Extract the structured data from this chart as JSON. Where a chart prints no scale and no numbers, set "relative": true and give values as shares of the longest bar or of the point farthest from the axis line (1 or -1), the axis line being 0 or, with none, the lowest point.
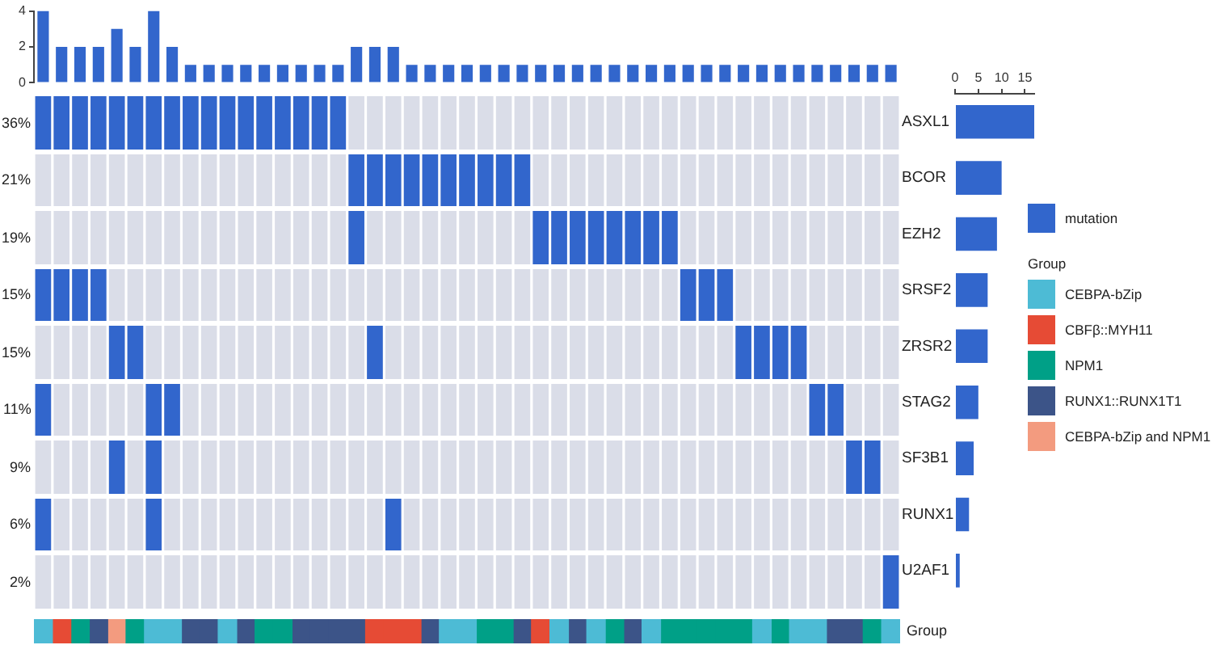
{
  "chart_data": [
    {
      "type": "bar",
      "categories": [
        null,
        null,
        null,
        null,
        null,
        null,
        null,
        null,
        null,
        null,
        null,
        null,
        null,
        null,
        null,
        null,
        null,
        null,
        null,
        null,
        null,
        null,
        null,
        null,
        null,
        null,
        null,
        null,
        null,
        null,
        null,
        null,
        null,
        null,
        null,
        null,
        null,
        null,
        null,
        null,
        null,
        null,
        null,
        null,
        null,
        null,
        null
      ],
      "series": [
        {
          "name": "mutation",
          "color": "#3266cc",
          "values": [
            4,
            2,
            2,
            2,
            3,
            2,
            4,
            2,
            1,
            1,
            1,
            1,
            1,
            1,
            1,
            1,
            1,
            2,
            2,
            2,
            1,
            1,
            1,
            1,
            1,
            1,
            1,
            1,
            1,
            1,
            1,
            1,
            1,
            1,
            1,
            1,
            1,
            1,
            1,
            1,
            1,
            1,
            1,
            1,
            1,
            1,
            1
          ]
        }
      ],
      "legend": "right",
      "ylim": [
        0,
        4
      ],
      "yticks": [
        0,
        2,
        4
      ]
    },
    {
      "type": "bar",
      "relative": true,
      "ylabel": "36%",
      "color": "#3266cc",
      "categories": [
        null,
        null,
        null,
        null,
        null,
        null,
        null,
        null,
        null,
        null,
        null,
        null,
        null,
        null,
        null,
        null,
        null,
        null,
        null,
        null,
        null,
        null,
        null,
        null,
        null,
        null,
        null,
        null,
        null,
        null,
        null,
        null,
        null,
        null,
        null,
        null,
        null,
        null,
        null,
        null,
        null,
        null,
        null,
        null,
        null,
        null,
        null
      ],
      "values": [
        1,
        1,
        1,
        1,
        1,
        1,
        1,
        1,
        1,
        1,
        1,
        1,
        1,
        1,
        1,
        1,
        1,
        null,
        null,
        null,
        null,
        null,
        null,
        null,
        null,
        null,
        null,
        null,
        null,
        null,
        null,
        null,
        null,
        null,
        null,
        null,
        null,
        null,
        null,
        null,
        null,
        null,
        null,
        null,
        null,
        null,
        null
      ]
    },
    {
      "type": "bar",
      "relative": true,
      "ylabel": "21%",
      "color": "#3266cc",
      "categories": [
        null,
        null,
        null,
        null,
        null,
        null,
        null,
        null,
        null,
        null,
        null,
        null,
        null,
        null,
        null,
        null,
        null,
        null,
        null,
        null,
        null,
        null,
        null,
        null,
        null,
        null,
        null,
        null,
        null,
        null,
        null,
        null,
        null,
        null,
        null,
        null,
        null,
        null,
        null,
        null,
        null,
        null,
        null,
        null,
        null,
        null,
        null
      ],
      "values": [
        null,
        null,
        null,
        null,
        null,
        null,
        null,
        null,
        null,
        null,
        null,
        null,
        null,
        null,
        null,
        null,
        null,
        1,
        1,
        1,
        1,
        1,
        1,
        1,
        1,
        1,
        1,
        null,
        null,
        null,
        null,
        null,
        null,
        null,
        null,
        null,
        null,
        null,
        null,
        null,
        null,
        null,
        null,
        null,
        null,
        null,
        null
      ]
    },
    {
      "type": "bar",
      "relative": true,
      "ylabel": "19%",
      "color": "#3266cc",
      "categories": [
        null,
        null,
        null,
        null,
        null,
        null,
        null,
        null,
        null,
        null,
        null,
        null,
        null,
        null,
        null,
        null,
        null,
        null,
        null,
        null,
        null,
        null,
        null,
        null,
        null,
        null,
        null,
        null,
        null,
        null,
        null,
        null,
        null,
        null,
        null,
        null,
        null,
        null,
        null,
        null,
        null,
        null,
        null,
        null,
        null,
        null,
        null
      ],
      "values": [
        null,
        null,
        null,
        null,
        null,
        null,
        null,
        null,
        null,
        null,
        null,
        null,
        null,
        null,
        null,
        null,
        null,
        1,
        null,
        null,
        null,
        null,
        null,
        null,
        null,
        null,
        null,
        1,
        1,
        1,
        1,
        1,
        1,
        1,
        1,
        null,
        null,
        null,
        null,
        null,
        null,
        null,
        null,
        null,
        null,
        null,
        null
      ]
    },
    {
      "type": "bar",
      "relative": true,
      "ylabel": "15%",
      "color": "#3266cc",
      "categories": [
        null,
        null,
        null,
        null,
        null,
        null,
        null,
        null,
        null,
        null,
        null,
        null,
        null,
        null,
        null,
        null,
        null,
        null,
        null,
        null,
        null,
        null,
        null,
        null,
        null,
        null,
        null,
        null,
        null,
        null,
        null,
        null,
        null,
        null,
        null,
        null,
        null,
        null,
        null,
        null,
        null,
        null,
        null,
        null,
        null,
        null,
        null
      ],
      "values": [
        1,
        1,
        1,
        1,
        null,
        null,
        null,
        null,
        null,
        null,
        null,
        null,
        null,
        null,
        null,
        null,
        null,
        null,
        null,
        null,
        null,
        null,
        null,
        null,
        null,
        null,
        null,
        null,
        null,
        null,
        null,
        null,
        null,
        null,
        null,
        1,
        1,
        1,
        null,
        null,
        null,
        null,
        null,
        null,
        null,
        null,
        null
      ]
    },
    {
      "type": "bar",
      "relative": true,
      "ylabel": "15%",
      "color": "#3266cc",
      "categories": [
        null,
        null,
        null,
        null,
        null,
        null,
        null,
        null,
        null,
        null,
        null,
        null,
        null,
        null,
        null,
        null,
        null,
        null,
        null,
        null,
        null,
        null,
        null,
        null,
        null,
        null,
        null,
        null,
        null,
        null,
        null,
        null,
        null,
        null,
        null,
        null,
        null,
        null,
        null,
        null,
        null,
        null,
        null,
        null,
        null,
        null,
        null
      ],
      "values": [
        null,
        null,
        null,
        null,
        1,
        1,
        null,
        null,
        null,
        null,
        null,
        null,
        null,
        null,
        null,
        null,
        null,
        null,
        1,
        null,
        null,
        null,
        null,
        null,
        null,
        null,
        null,
        null,
        null,
        null,
        null,
        null,
        null,
        null,
        null,
        null,
        null,
        null,
        1,
        1,
        1,
        1,
        null,
        null,
        null,
        null,
        null
      ]
    },
    {
      "type": "bar",
      "relative": true,
      "ylabel": "11%",
      "color": "#3266cc",
      "categories": [
        null,
        null,
        null,
        null,
        null,
        null,
        null,
        null,
        null,
        null,
        null,
        null,
        null,
        null,
        null,
        null,
        null,
        null,
        null,
        null,
        null,
        null,
        null,
        null,
        null,
        null,
        null,
        null,
        null,
        null,
        null,
        null,
        null,
        null,
        null,
        null,
        null,
        null,
        null,
        null,
        null,
        null,
        null,
        null,
        null,
        null,
        null
      ],
      "values": [
        1,
        null,
        null,
        null,
        null,
        null,
        1,
        1,
        null,
        null,
        null,
        null,
        null,
        null,
        null,
        null,
        null,
        null,
        null,
        null,
        null,
        null,
        null,
        null,
        null,
        null,
        null,
        null,
        null,
        null,
        null,
        null,
        null,
        null,
        null,
        null,
        null,
        null,
        null,
        null,
        null,
        null,
        1,
        1,
        null,
        null,
        null
      ]
    },
    {
      "type": "bar",
      "relative": true,
      "ylabel": "9%",
      "color": "#3266cc",
      "categories": [
        null,
        null,
        null,
        null,
        null,
        null,
        null,
        null,
        null,
        null,
        null,
        null,
        null,
        null,
        null,
        null,
        null,
        null,
        null,
        null,
        null,
        null,
        null,
        null,
        null,
        null,
        null,
        null,
        null,
        null,
        null,
        null,
        null,
        null,
        null,
        null,
        null,
        null,
        null,
        null,
        null,
        null,
        null,
        null,
        null,
        null,
        null
      ],
      "values": [
        null,
        null,
        null,
        null,
        1,
        null,
        1,
        null,
        null,
        null,
        null,
        null,
        null,
        null,
        null,
        null,
        null,
        null,
        null,
        null,
        null,
        null,
        null,
        null,
        null,
        null,
        null,
        null,
        null,
        null,
        null,
        null,
        null,
        null,
        null,
        null,
        null,
        null,
        null,
        null,
        null,
        null,
        null,
        null,
        1,
        1,
        null
      ]
    },
    {
      "type": "bar",
      "relative": true,
      "ylabel": "6%",
      "color": "#3266cc",
      "categories": [
        null,
        null,
        null,
        null,
        null,
        null,
        null,
        null,
        null,
        null,
        null,
        null,
        null,
        null,
        null,
        null,
        null,
        null,
        null,
        null,
        null,
        null,
        null,
        null,
        null,
        null,
        null,
        null,
        null,
        null,
        null,
        null,
        null,
        null,
        null,
        null,
        null,
        null,
        null,
        null,
        null,
        null,
        null,
        null,
        null,
        null,
        null
      ],
      "values": [
        1,
        null,
        null,
        null,
        null,
        null,
        1,
        null,
        null,
        null,
        null,
        null,
        null,
        null,
        null,
        null,
        null,
        null,
        null,
        1,
        null,
        null,
        null,
        null,
        null,
        null,
        null,
        null,
        null,
        null,
        null,
        null,
        null,
        null,
        null,
        null,
        null,
        null,
        null,
        null,
        null,
        null,
        null,
        null,
        null,
        null,
        null
      ]
    },
    {
      "type": "bar",
      "relative": true,
      "ylabel": "2%",
      "color": "#3266cc",
      "categories": [
        null,
        null,
        null,
        null,
        null,
        null,
        null,
        null,
        null,
        null,
        null,
        null,
        null,
        null,
        null,
        null,
        null,
        null,
        null,
        null,
        null,
        null,
        null,
        null,
        null,
        null,
        null,
        null,
        null,
        null,
        null,
        null,
        null,
        null,
        null,
        null,
        null,
        null,
        null,
        null,
        null,
        null,
        null,
        null,
        null,
        null,
        null
      ],
      "values": [
        null,
        null,
        null,
        null,
        null,
        null,
        null,
        null,
        null,
        null,
        null,
        null,
        null,
        null,
        null,
        null,
        null,
        null,
        null,
        null,
        null,
        null,
        null,
        null,
        null,
        null,
        null,
        null,
        null,
        null,
        null,
        null,
        null,
        null,
        null,
        null,
        null,
        null,
        null,
        null,
        null,
        null,
        null,
        null,
        null,
        null,
        1
      ]
    },
    {
      "type": "bar",
      "orientation": "horizontal",
      "categories": [
        "ASXL1",
        "BCOR",
        "EZH2",
        "SRSF2",
        "ZRSR2",
        "STAG2",
        "SF3B1",
        "RUNX1",
        "U2AF1"
      ],
      "values": [
        17,
        10,
        9,
        7,
        7,
        5,
        4,
        3,
        1
      ],
      "color": "#3266cc",
      "xlim": [
        0,
        17
      ],
      "xticks": [
        0,
        5,
        10,
        15
      ]
    },
    {
      "type": "bar",
      "stacked": true,
      "relative": true,
      "y2label": "Group",
      "legend_title": "Group",
      "legend": "right",
      "categories": [
        null,
        null,
        null,
        null,
        null,
        null,
        null,
        null,
        null,
        null,
        null,
        null,
        null,
        null,
        null,
        null,
        null,
        null,
        null,
        null,
        null,
        null,
        null,
        null,
        null,
        null,
        null,
        null,
        null,
        null,
        null,
        null,
        null,
        null,
        null,
        null,
        null,
        null,
        null,
        null,
        null,
        null,
        null,
        null,
        null,
        null,
        null
      ],
      "series": [
        {
          "name": "CEBPA-bZip",
          "color": "#4dbbd5",
          "values": [
            1,
            null,
            null,
            null,
            null,
            null,
            1,
            1,
            null,
            null,
            1,
            null,
            null,
            null,
            null,
            null,
            null,
            null,
            null,
            null,
            null,
            null,
            1,
            1,
            null,
            null,
            null,
            null,
            1,
            null,
            1,
            null,
            null,
            1,
            null,
            null,
            null,
            null,
            null,
            1,
            null,
            1,
            1,
            null,
            null,
            null,
            1
          ]
        },
        {
          "name": "CBFβ::MYH11",
          "color": "#e64b35",
          "values": [
            null,
            1,
            null,
            null,
            null,
            null,
            null,
            null,
            null,
            null,
            null,
            null,
            null,
            null,
            null,
            null,
            null,
            null,
            1,
            1,
            1,
            null,
            null,
            null,
            null,
            null,
            null,
            1,
            null,
            null,
            null,
            null,
            null,
            null,
            null,
            null,
            null,
            null,
            null,
            null,
            null,
            null,
            null,
            null,
            null,
            null,
            null
          ]
        },
        {
          "name": "NPM1",
          "color": "#00a087",
          "values": [
            null,
            null,
            1,
            null,
            null,
            1,
            null,
            null,
            null,
            null,
            null,
            null,
            1,
            1,
            null,
            null,
            null,
            null,
            null,
            null,
            null,
            null,
            null,
            null,
            1,
            1,
            null,
            null,
            null,
            null,
            null,
            1,
            null,
            null,
            1,
            1,
            1,
            1,
            1,
            null,
            1,
            null,
            null,
            null,
            null,
            1,
            null
          ]
        },
        {
          "name": "RUNX1::RUNX1T1",
          "color": "#3c5488",
          "values": [
            null,
            null,
            null,
            1,
            null,
            null,
            null,
            null,
            1,
            1,
            null,
            1,
            null,
            null,
            1,
            1,
            1,
            1,
            null,
            null,
            null,
            1,
            null,
            null,
            null,
            null,
            1,
            null,
            null,
            1,
            null,
            null,
            1,
            null,
            null,
            null,
            null,
            null,
            null,
            null,
            null,
            null,
            null,
            1,
            1,
            null,
            null
          ]
        },
        {
          "name": "CEBPA-bZip and NPM1",
          "color": "#f39b7f",
          "values": [
            null,
            null,
            null,
            null,
            1,
            null,
            null,
            null,
            null,
            null,
            null,
            null,
            null,
            null,
            null,
            null,
            null,
            null,
            null,
            null,
            null,
            null,
            null,
            null,
            null,
            null,
            null,
            null,
            null,
            null,
            null,
            null,
            null,
            null,
            null,
            null,
            null,
            null,
            null,
            null,
            null,
            null,
            null,
            null,
            null,
            null,
            null
          ]
        }
      ]
    }
  ]
}
